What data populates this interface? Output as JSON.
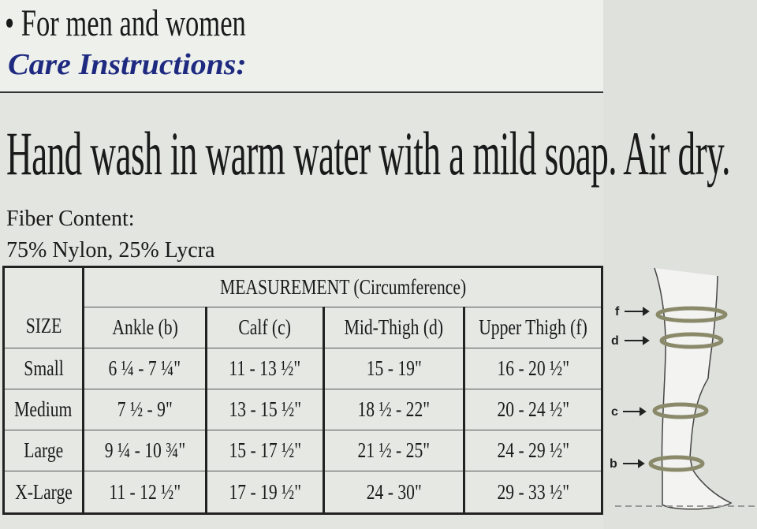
{
  "bullet_text": "• For men and women",
  "care_heading": "Care Instructions:",
  "care_text": "Hand wash in warm water with a mild soap. Air dry.",
  "fiber_label": "Fiber Content:",
  "fiber_value": "75% Nylon, 25% Lycra",
  "table": {
    "size_header": "SIZE",
    "group_header": "MEASUREMENT (Circumference)",
    "columns": [
      "Ankle (b)",
      "Calf (c)",
      "Mid-Thigh (d)",
      "Upper Thigh (f)"
    ],
    "rows": [
      {
        "size": "Small",
        "values": [
          "6 ¼ - 7 ¼\"",
          "11 - 13 ½\"",
          "15 - 19\"",
          "16 - 20 ½\""
        ]
      },
      {
        "size": "Medium",
        "values": [
          "7 ½ - 9\"",
          "13 - 15 ½\"",
          "18 ½ - 22\"",
          "20 - 24 ½\""
        ]
      },
      {
        "size": "Large",
        "values": [
          "9 ¼ - 10 ¾\"",
          "15 - 17 ½\"",
          "21 ½ - 25\"",
          "24 - 29 ½\""
        ]
      },
      {
        "size": "X-Large",
        "values": [
          "11 - 12 ½\"",
          "17 - 19 ½\"",
          "24 - 30\"",
          "29 - 33 ½\""
        ]
      }
    ]
  },
  "diagram_labels": [
    "f",
    "d",
    "c",
    "b"
  ]
}
